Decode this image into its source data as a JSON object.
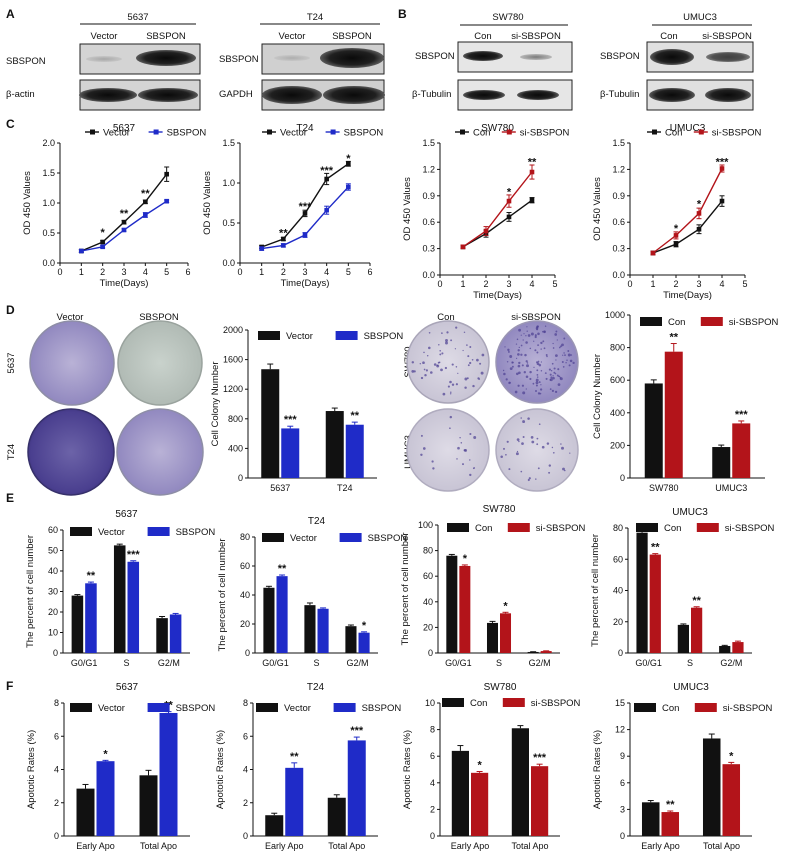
{
  "panel_letters": {
    "A": "A",
    "B": "B",
    "C": "C",
    "D": "D",
    "E": "E",
    "F": "F"
  },
  "colors": {
    "vector": "#111111",
    "sbspon": "#1f2bc8",
    "con": "#111111",
    "si": "#b3141a"
  },
  "western_blots": [
    {
      "title": "5637",
      "lanes": [
        "Vector",
        "SBSPON"
      ],
      "rows": [
        "SBSPON",
        "β-actin"
      ]
    },
    {
      "title": "T24",
      "lanes": [
        "Vector",
        "SBSPON"
      ],
      "rows": [
        "SBSPON",
        "GAPDH"
      ]
    },
    {
      "title": "SW780",
      "lanes": [
        "Con",
        "si-SBSPON"
      ],
      "rows": [
        "SBSPON",
        "β-Tubulin"
      ]
    },
    {
      "title": "UMUC3",
      "lanes": [
        "Con",
        "si-SBSPON"
      ],
      "rows": [
        "SBSPON",
        "β-Tubulin"
      ]
    }
  ],
  "colony_plates": {
    "left": {
      "cols": [
        "Vector",
        "SBSPON"
      ],
      "rows": [
        "5637",
        "T24"
      ]
    },
    "right": {
      "cols": [
        "Con",
        "si-SBSPON"
      ],
      "rows": [
        "SW780",
        "UMUC3"
      ]
    }
  },
  "chart_data": [
    {
      "id": "C1",
      "type": "line",
      "title": "5637",
      "xlabel": "Time(Days)",
      "ylabel": "OD 450 Values",
      "xlim": [
        0,
        6
      ],
      "ylim": [
        0,
        2.0
      ],
      "xticks": [
        0,
        1,
        2,
        3,
        4,
        5,
        6
      ],
      "yticks": [
        0,
        0.5,
        1.0,
        1.5,
        2.0
      ],
      "ytick_labels": [
        "0.0",
        "0.5",
        "1.0",
        "1.5",
        "2.0"
      ],
      "x": [
        1,
        2,
        3,
        4,
        5
      ],
      "series": [
        {
          "name": "Vector",
          "color": "#111111",
          "values": [
            0.2,
            0.35,
            0.68,
            1.02,
            1.48
          ],
          "err": [
            0.02,
            0.02,
            0.03,
            0.03,
            0.12
          ]
        },
        {
          "name": "SBSPON",
          "color": "#1f2bc8",
          "values": [
            0.2,
            0.27,
            0.55,
            0.8,
            1.03
          ],
          "err": [
            0.02,
            0.02,
            0.02,
            0.04,
            0.02
          ]
        }
      ],
      "stars": [
        {
          "x": 2,
          "y": 0.5,
          "text": "*"
        },
        {
          "x": 3,
          "y": 0.82,
          "text": "**"
        },
        {
          "x": 4,
          "y": 1.15,
          "text": "**"
        }
      ]
    },
    {
      "id": "C2",
      "type": "line",
      "title": "T24",
      "xlabel": "Time(Days)",
      "ylabel": "OD 450 Values",
      "xlim": [
        0,
        6
      ],
      "ylim": [
        0,
        1.5
      ],
      "xticks": [
        0,
        1,
        2,
        3,
        4,
        5,
        6
      ],
      "yticks": [
        0,
        0.5,
        1.0,
        1.5
      ],
      "ytick_labels": [
        "0.0",
        "0.5",
        "1.0",
        "1.5"
      ],
      "x": [
        1,
        2,
        3,
        4,
        5
      ],
      "series": [
        {
          "name": "Vector",
          "color": "#111111",
          "values": [
            0.2,
            0.3,
            0.62,
            1.05,
            1.24
          ],
          "err": [
            0.02,
            0.02,
            0.04,
            0.07,
            0.03
          ]
        },
        {
          "name": "SBSPON",
          "color": "#1f2bc8",
          "values": [
            0.18,
            0.22,
            0.35,
            0.66,
            0.95
          ],
          "err": [
            0.02,
            0.02,
            0.03,
            0.05,
            0.04
          ]
        }
      ],
      "stars": [
        {
          "x": 2,
          "y": 0.37,
          "text": "**"
        },
        {
          "x": 3,
          "y": 0.7,
          "text": "***"
        },
        {
          "x": 4,
          "y": 1.15,
          "text": "***"
        },
        {
          "x": 5,
          "y": 1.3,
          "text": "*"
        }
      ]
    },
    {
      "id": "C3",
      "type": "line",
      "title": "SW780",
      "xlabel": "Time(Days)",
      "ylabel": "OD 450 Values",
      "xlim": [
        0,
        5
      ],
      "ylim": [
        0,
        1.5
      ],
      "xticks": [
        0,
        1,
        2,
        3,
        4,
        5
      ],
      "yticks": [
        0,
        0.3,
        0.6,
        0.9,
        1.2,
        1.5
      ],
      "ytick_labels": [
        "0.0",
        "0.3",
        "0.6",
        "0.9",
        "1.2",
        "1.5"
      ],
      "x": [
        1,
        2,
        3,
        4
      ],
      "series": [
        {
          "name": "Con",
          "color": "#111111",
          "values": [
            0.32,
            0.47,
            0.66,
            0.85
          ],
          "err": [
            0.02,
            0.04,
            0.05,
            0.03
          ]
        },
        {
          "name": "si-SBSPON",
          "color": "#b3141a",
          "values": [
            0.32,
            0.5,
            0.84,
            1.17
          ],
          "err": [
            0.02,
            0.05,
            0.07,
            0.08
          ]
        }
      ],
      "stars": [
        {
          "x": 3,
          "y": 0.94,
          "text": "*"
        },
        {
          "x": 4,
          "y": 1.28,
          "text": "**"
        }
      ]
    },
    {
      "id": "C4",
      "type": "line",
      "title": "UMUC3",
      "xlabel": "Time(Days)",
      "ylabel": "OD 450 Values",
      "xlim": [
        0,
        5
      ],
      "ylim": [
        0,
        1.5
      ],
      "xticks": [
        0,
        1,
        2,
        3,
        4,
        5
      ],
      "yticks": [
        0,
        0.3,
        0.6,
        0.9,
        1.2,
        1.5
      ],
      "ytick_labels": [
        "0.0",
        "0.3",
        "0.6",
        "0.9",
        "1.2",
        "1.5"
      ],
      "x": [
        1,
        2,
        3,
        4
      ],
      "series": [
        {
          "name": "Con",
          "color": "#111111",
          "values": [
            0.25,
            0.35,
            0.52,
            0.84
          ],
          "err": [
            0.02,
            0.03,
            0.05,
            0.06
          ]
        },
        {
          "name": "si-SBSPON",
          "color": "#b3141a",
          "values": [
            0.25,
            0.45,
            0.7,
            1.21
          ],
          "err": [
            0.02,
            0.04,
            0.06,
            0.04
          ]
        }
      ],
      "stars": [
        {
          "x": 2,
          "y": 0.52,
          "text": "*"
        },
        {
          "x": 3,
          "y": 0.8,
          "text": "*"
        },
        {
          "x": 4,
          "y": 1.28,
          "text": "***"
        }
      ]
    },
    {
      "id": "D1",
      "type": "bar",
      "title": "",
      "xlabel": "",
      "ylabel": "Cell Colony Number",
      "ylim": [
        0,
        2000
      ],
      "yticks": [
        0,
        400,
        800,
        1200,
        1600,
        2000
      ],
      "ytick_labels": [
        "0",
        "400",
        "800",
        "1200",
        "1600",
        "2000"
      ],
      "categories": [
        "5637",
        "T24"
      ],
      "series": [
        {
          "name": "Vector",
          "color": "#111111",
          "values": [
            1470,
            905
          ],
          "err": [
            70,
            40
          ]
        },
        {
          "name": "SBSPON",
          "color": "#1f2bc8",
          "values": [
            670,
            720
          ],
          "err": [
            30,
            35
          ]
        }
      ],
      "stars": [
        {
          "c": 0,
          "s": 1,
          "text": "***"
        },
        {
          "c": 1,
          "s": 1,
          "text": "**"
        }
      ]
    },
    {
      "id": "D2",
      "type": "bar",
      "title": "",
      "xlabel": "",
      "ylabel": "Cell Colony Number",
      "ylim": [
        0,
        1000
      ],
      "yticks": [
        0,
        200,
        400,
        600,
        800,
        1000
      ],
      "ytick_labels": [
        "0",
        "200",
        "400",
        "600",
        "800",
        "1000"
      ],
      "categories": [
        "SW780",
        "UMUC3"
      ],
      "series": [
        {
          "name": "Con",
          "color": "#111111",
          "values": [
            580,
            190
          ],
          "err": [
            22,
            12
          ]
        },
        {
          "name": "si-SBSPON",
          "color": "#b3141a",
          "values": [
            775,
            335
          ],
          "err": [
            50,
            15
          ]
        }
      ],
      "stars": [
        {
          "c": 0,
          "s": 1,
          "text": "**"
        },
        {
          "c": 1,
          "s": 1,
          "text": "***"
        }
      ]
    },
    {
      "id": "E1",
      "type": "bar",
      "title": "5637",
      "xlabel": "",
      "ylabel": "The percent of cell number",
      "ylim": [
        0,
        60
      ],
      "yticks": [
        0,
        10,
        20,
        30,
        40,
        50,
        60
      ],
      "ytick_labels": [
        "0",
        "10",
        "20",
        "30",
        "40",
        "50",
        "60"
      ],
      "categories": [
        "G0/G1",
        "S",
        "G2/M"
      ],
      "series": [
        {
          "name": "Vector",
          "color": "#111111",
          "values": [
            28,
            52.5,
            17
          ],
          "err": [
            0.5,
            0.6,
            0.8
          ]
        },
        {
          "name": "SBSPON",
          "color": "#1f2bc8",
          "values": [
            34,
            44.5,
            18.8
          ],
          "err": [
            0.6,
            0.5,
            0.5
          ]
        }
      ],
      "stars": [
        {
          "c": 0,
          "s": 1,
          "text": "**"
        },
        {
          "c": 1,
          "s": 1,
          "text": "***"
        }
      ]
    },
    {
      "id": "E2",
      "type": "bar",
      "title": "T24",
      "xlabel": "",
      "ylabel": "The percent of cell number",
      "ylim": [
        0,
        80
      ],
      "yticks": [
        0,
        20,
        40,
        60,
        80
      ],
      "ytick_labels": [
        "0",
        "20",
        "40",
        "60",
        "80"
      ],
      "categories": [
        "G0/G1",
        "S",
        "G2/M"
      ],
      "series": [
        {
          "name": "Vector",
          "color": "#111111",
          "values": [
            45,
            33,
            18.5
          ],
          "err": [
            1,
            1.5,
            0.8
          ]
        },
        {
          "name": "SBSPON",
          "color": "#1f2bc8",
          "values": [
            53,
            30.5,
            14
          ],
          "err": [
            0.8,
            0.6,
            0.6
          ]
        }
      ],
      "stars": [
        {
          "c": 0,
          "s": 1,
          "text": "**"
        },
        {
          "c": 2,
          "s": 1,
          "text": "*"
        }
      ]
    },
    {
      "id": "E3",
      "type": "bar",
      "title": "SW780",
      "xlabel": "",
      "ylabel": "The percent of cell number",
      "ylim": [
        0,
        100
      ],
      "yticks": [
        0,
        20,
        40,
        60,
        80,
        100
      ],
      "ytick_labels": [
        "0",
        "20",
        "40",
        "60",
        "80",
        "100"
      ],
      "categories": [
        "G0/G1",
        "S",
        "G2/M"
      ],
      "series": [
        {
          "name": "Con",
          "color": "#111111",
          "values": [
            76,
            23.5,
            0.8
          ],
          "err": [
            1,
            1.2,
            0.2
          ]
        },
        {
          "name": "si-SBSPON",
          "color": "#b3141a",
          "values": [
            68,
            31,
            1.5
          ],
          "err": [
            0.8,
            0.8,
            0.2
          ]
        }
      ],
      "stars": [
        {
          "c": 0,
          "s": 1,
          "text": "*"
        },
        {
          "c": 1,
          "s": 1,
          "text": "*"
        }
      ]
    },
    {
      "id": "E4",
      "type": "bar",
      "title": "UMUC3",
      "xlabel": "",
      "ylabel": "The percent of cell number",
      "ylim": [
        0,
        80
      ],
      "yticks": [
        0,
        20,
        40,
        60,
        80
      ],
      "ytick_labels": [
        "0",
        "20",
        "40",
        "60",
        "80"
      ],
      "categories": [
        "G0/G1",
        "S",
        "G2/M"
      ],
      "series": [
        {
          "name": "Con",
          "color": "#111111",
          "values": [
            77,
            18,
            4.5
          ],
          "err": [
            0.8,
            0.6,
            0.4
          ]
        },
        {
          "name": "si-SBSPON",
          "color": "#b3141a",
          "values": [
            63,
            29,
            7
          ],
          "err": [
            0.6,
            0.6,
            0.6
          ]
        }
      ],
      "stars": [
        {
          "c": 0,
          "s": 1,
          "text": "**"
        },
        {
          "c": 1,
          "s": 1,
          "text": "**"
        }
      ]
    },
    {
      "id": "F1",
      "type": "bar",
      "title": "5637",
      "xlabel": "",
      "ylabel": "Apototic Rates (%)",
      "ylim": [
        0,
        8
      ],
      "yticks": [
        0,
        2,
        4,
        6,
        8
      ],
      "ytick_labels": [
        "0",
        "2",
        "4",
        "6",
        "8"
      ],
      "categories": [
        "Early Apo",
        "Total Apo"
      ],
      "series": [
        {
          "name": "Vector",
          "color": "#111111",
          "values": [
            2.85,
            3.65
          ],
          "err": [
            0.25,
            0.3
          ]
        },
        {
          "name": "SBSPON",
          "color": "#1f2bc8",
          "values": [
            4.5,
            7.4
          ],
          "err": [
            0.05,
            0.08
          ]
        }
      ],
      "stars": [
        {
          "c": 0,
          "s": 1,
          "text": "*"
        },
        {
          "c": 1,
          "s": 1,
          "text": "**"
        }
      ]
    },
    {
      "id": "F2",
      "type": "bar",
      "title": "T24",
      "xlabel": "",
      "ylabel": "Apototic Rates (%)",
      "ylim": [
        0,
        8
      ],
      "yticks": [
        0,
        2,
        4,
        6,
        8
      ],
      "ytick_labels": [
        "0",
        "2",
        "4",
        "6",
        "8"
      ],
      "categories": [
        "Early Apo",
        "Total Apo"
      ],
      "series": [
        {
          "name": "Vector",
          "color": "#111111",
          "values": [
            1.25,
            2.3
          ],
          "err": [
            0.12,
            0.18
          ]
        },
        {
          "name": "SBSPON",
          "color": "#1f2bc8",
          "values": [
            4.1,
            5.75
          ],
          "err": [
            0.3,
            0.2
          ]
        }
      ],
      "stars": [
        {
          "c": 0,
          "s": 1,
          "text": "**"
        },
        {
          "c": 1,
          "s": 1,
          "text": "***"
        }
      ]
    },
    {
      "id": "F3",
      "type": "bar",
      "title": "SW780",
      "xlabel": "",
      "ylabel": "Apototic Rates (%)",
      "ylim": [
        0,
        10
      ],
      "yticks": [
        0,
        2,
        4,
        6,
        8,
        10
      ],
      "ytick_labels": [
        "0",
        "2",
        "4",
        "6",
        "8",
        "10"
      ],
      "categories": [
        "Early Apo",
        "Total Apo"
      ],
      "series": [
        {
          "name": "Con",
          "color": "#111111",
          "values": [
            6.4,
            8.1
          ],
          "err": [
            0.4,
            0.2
          ]
        },
        {
          "name": "si-SBSPON",
          "color": "#b3141a",
          "values": [
            4.75,
            5.25
          ],
          "err": [
            0.1,
            0.15
          ]
        }
      ],
      "stars": [
        {
          "c": 0,
          "s": 1,
          "text": "*"
        },
        {
          "c": 1,
          "s": 1,
          "text": "***"
        }
      ]
    },
    {
      "id": "F4",
      "type": "bar",
      "title": "UMUC3",
      "xlabel": "",
      "ylabel": "Apototic Rates (%)",
      "ylim": [
        0,
        15
      ],
      "yticks": [
        0,
        3,
        6,
        9,
        12,
        15
      ],
      "ytick_labels": [
        "0",
        "3",
        "6",
        "9",
        "12",
        "15"
      ],
      "categories": [
        "Early Apo",
        "Total Apo"
      ],
      "series": [
        {
          "name": "Con",
          "color": "#111111",
          "values": [
            3.8,
            11
          ],
          "err": [
            0.2,
            0.5
          ]
        },
        {
          "name": "si-SBSPON",
          "color": "#b3141a",
          "values": [
            2.7,
            8.1
          ],
          "err": [
            0.12,
            0.2
          ]
        }
      ],
      "stars": [
        {
          "c": 0,
          "s": 1,
          "text": "**"
        },
        {
          "c": 1,
          "s": 1,
          "text": "*"
        }
      ]
    }
  ]
}
